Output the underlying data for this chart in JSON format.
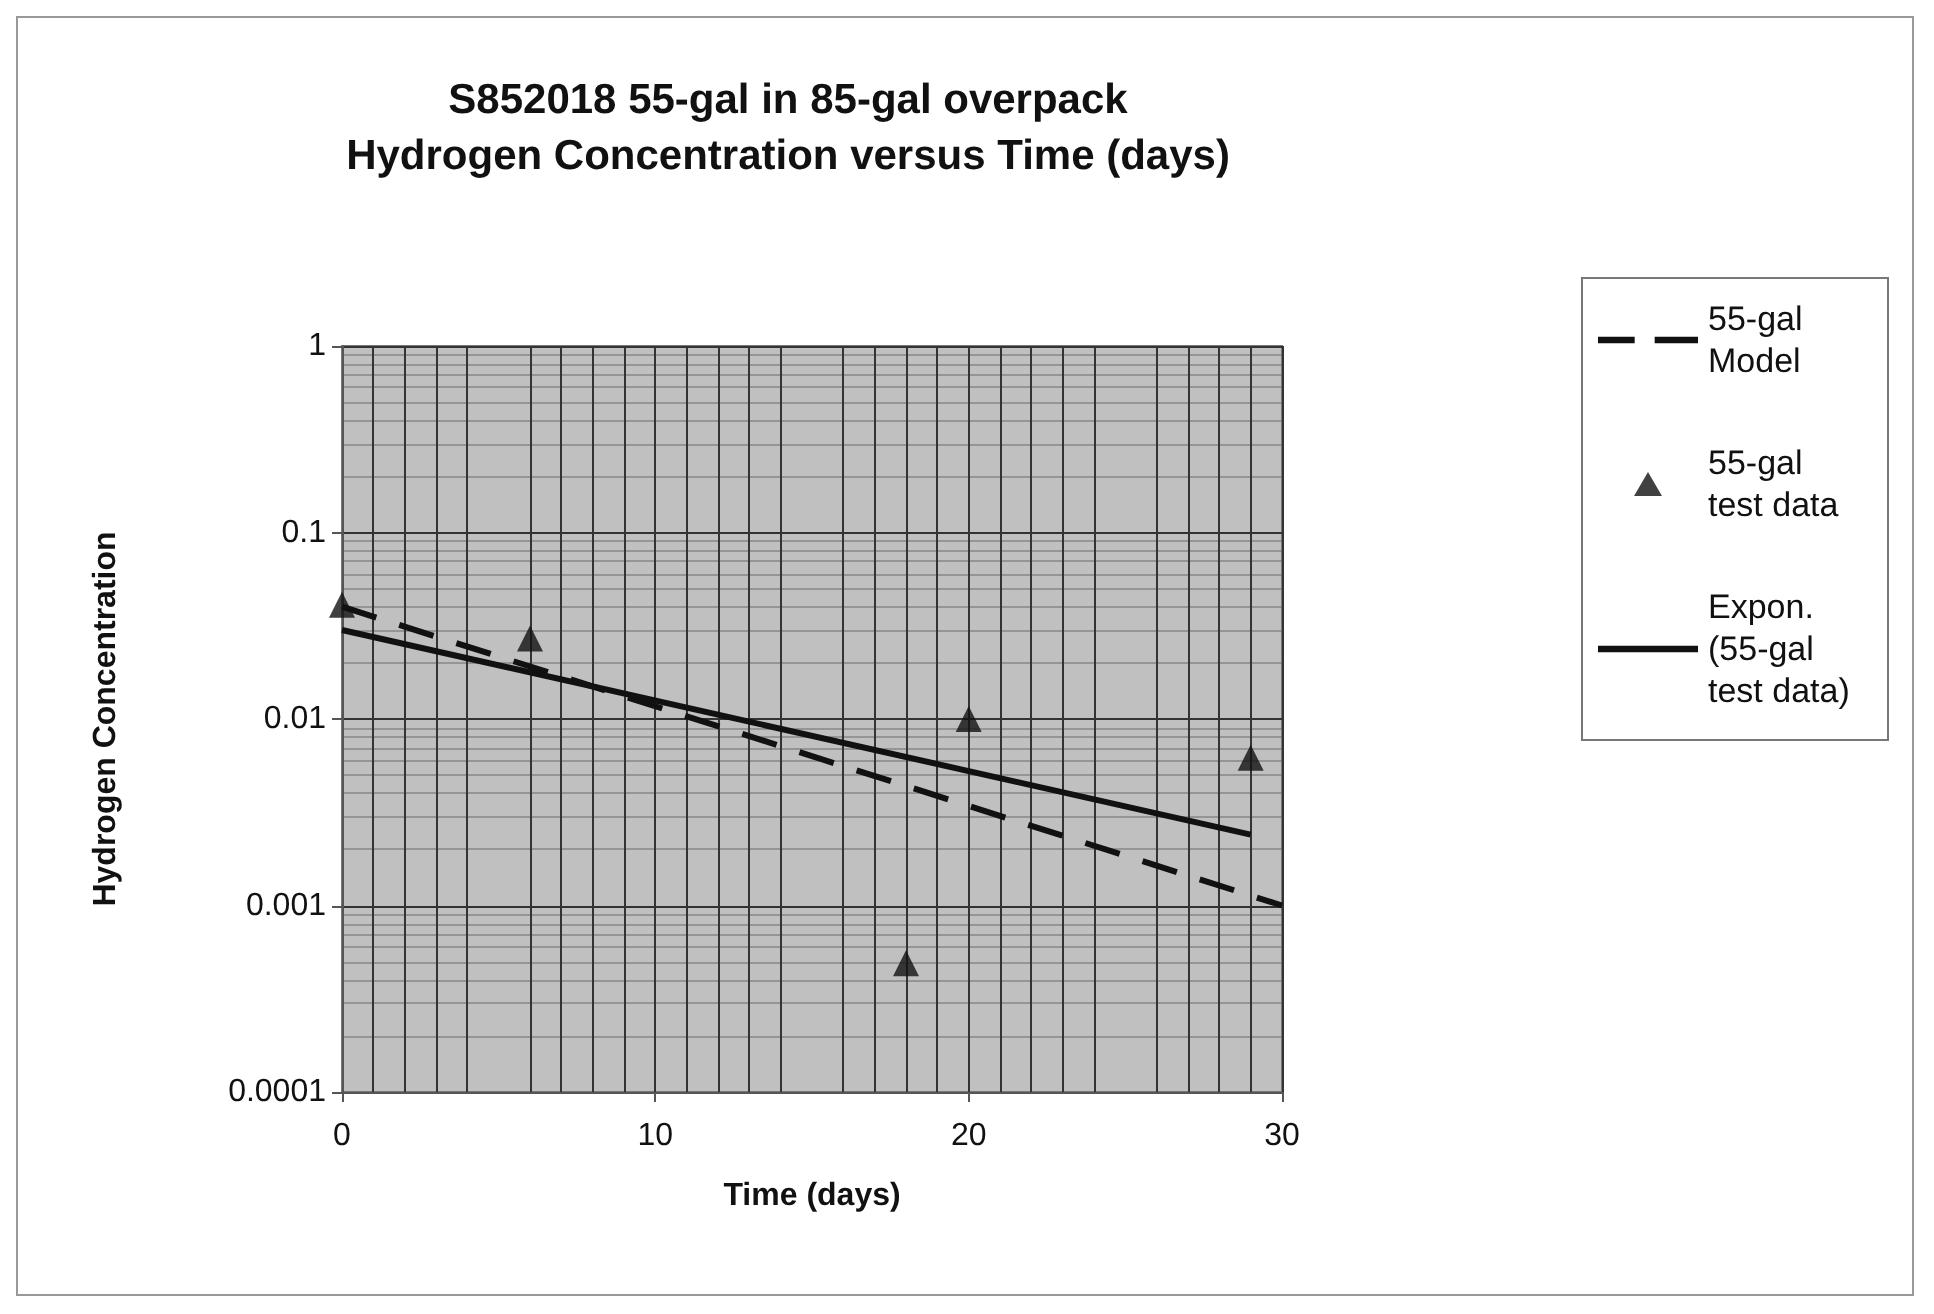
{
  "chart_data": {
    "type": "scatter",
    "title": "S852018 55-gal in 85-gal overpack\nHydrogen Concentration versus Time (days)",
    "xlabel": "Time (days)",
    "ylabel": "Hydrogen Concentration",
    "xlim": [
      0,
      30
    ],
    "xticks": [
      0,
      10,
      20,
      30
    ],
    "ylim": [
      0.0001,
      1
    ],
    "yticks": [
      0.0001,
      0.001,
      0.01,
      0.1,
      1
    ],
    "log": "y",
    "grid": true,
    "legend": "right",
    "series": [
      {
        "name": "55-gal Model",
        "type": "line",
        "line_style": "dashed",
        "marker": "none",
        "color": "#111111",
        "x": [
          0,
          30
        ],
        "values": [
          0.04,
          0.001
        ]
      },
      {
        "name": "55-gal test data",
        "type": "scatter",
        "marker": "triangle",
        "color": "#111111",
        "x": [
          0,
          6,
          18,
          20,
          29
        ],
        "values": [
          0.041,
          0.027,
          0.00049,
          0.01,
          0.0062
        ]
      },
      {
        "name": "Expon. (55-gal test data)",
        "type": "line",
        "line_style": "solid",
        "marker": "none",
        "color": "#111111",
        "x": [
          0,
          29
        ],
        "values": [
          0.03,
          0.0024
        ]
      }
    ]
  }
}
